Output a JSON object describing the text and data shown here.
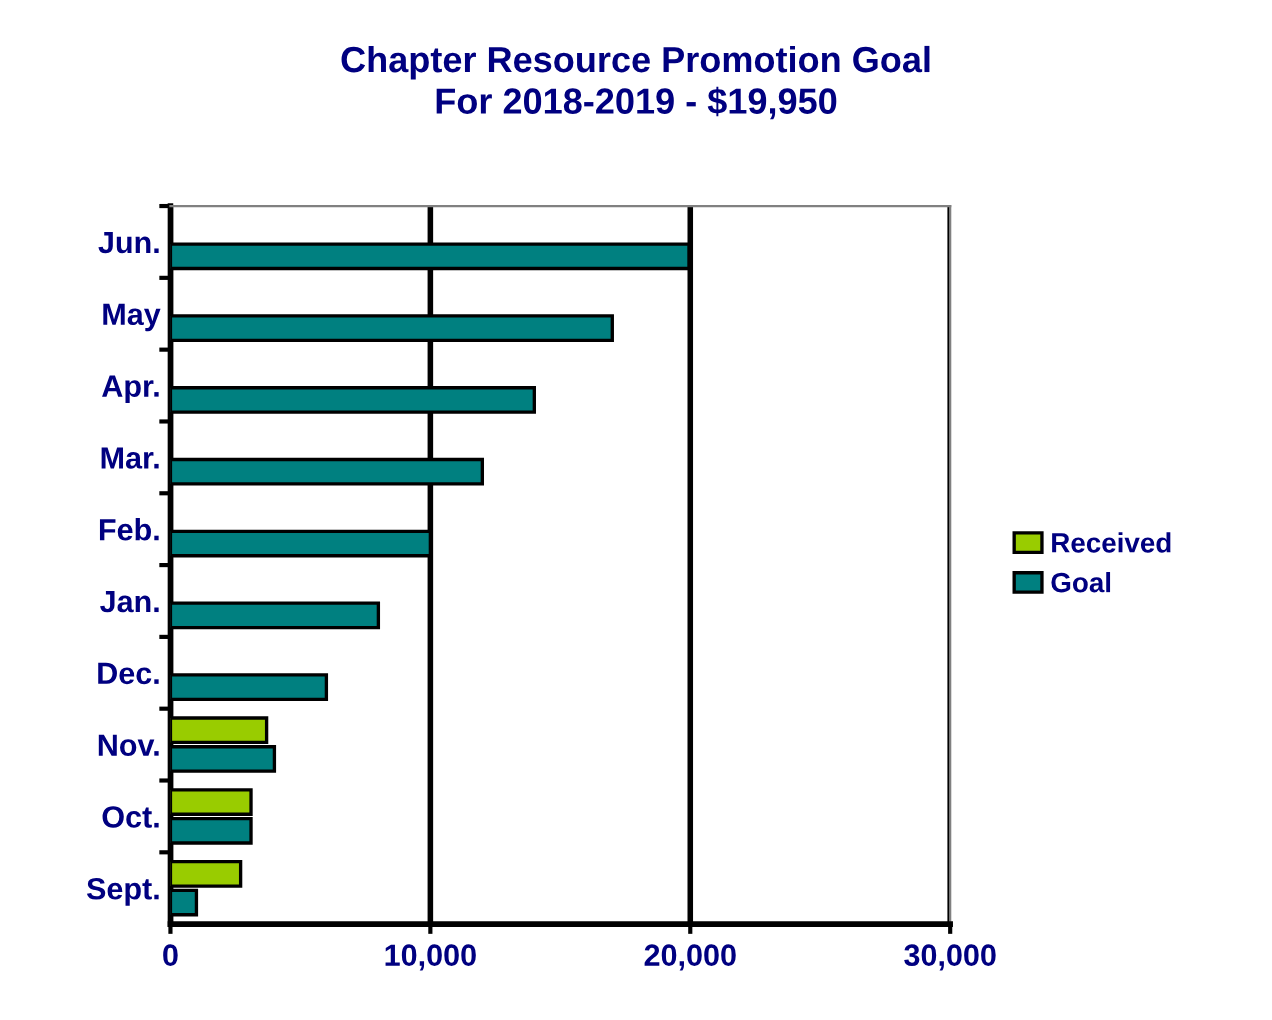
{
  "chart_data": {
    "type": "bar",
    "orientation": "horizontal",
    "title": "Chapter Resource Promotion Goal\nFor 2018-2019 - $19,950",
    "categories": [
      "Jun.",
      "May",
      "Apr.",
      "Mar.",
      "Feb.",
      "Jan.",
      "Dec.",
      "Nov.",
      "Oct.",
      "Sept."
    ],
    "series": [
      {
        "name": "Received",
        "color": "#99cc00",
        "values": [
          null,
          null,
          null,
          null,
          null,
          null,
          null,
          3700,
          3100,
          2700
        ]
      },
      {
        "name": "Goal",
        "color": "#008080",
        "values": [
          19950,
          17000,
          14000,
          12000,
          10000,
          8000,
          6000,
          4000,
          3100,
          1000
        ]
      }
    ],
    "xlim": [
      0,
      30000
    ],
    "xticks": [
      0,
      {
        "value": 10000,
        "label": "10,000"
      },
      {
        "value": 20000,
        "label": "20,000"
      },
      {
        "value": 30000,
        "label": "30,000"
      }
    ],
    "grid": "x",
    "legend": "right"
  }
}
